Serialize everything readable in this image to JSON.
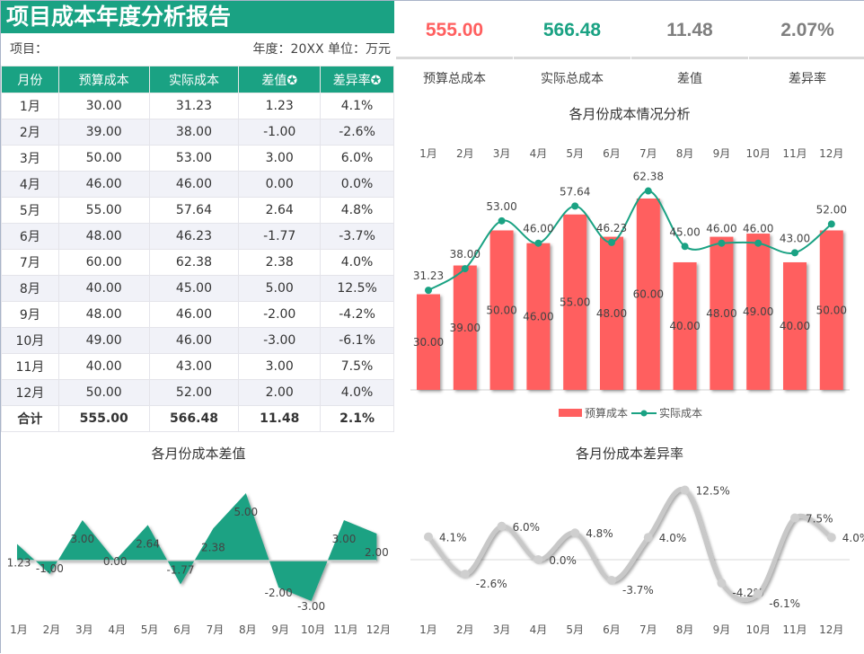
{
  "title": "项目成本年度分析报告",
  "meta": {
    "project_label": "项目：",
    "year_unit": "年度：20XX  单位：万元"
  },
  "table": {
    "headers": [
      "月份",
      "预算成本",
      "实际成本",
      "差值✪",
      "差异率✪"
    ],
    "rows": [
      [
        "1月",
        "30.00",
        "31.23",
        "1.23",
        "4.1%"
      ],
      [
        "2月",
        "39.00",
        "38.00",
        "-1.00",
        "-2.6%"
      ],
      [
        "3月",
        "50.00",
        "53.00",
        "3.00",
        "6.0%"
      ],
      [
        "4月",
        "46.00",
        "46.00",
        "0.00",
        "0.0%"
      ],
      [
        "5月",
        "55.00",
        "57.64",
        "2.64",
        "4.8%"
      ],
      [
        "6月",
        "48.00",
        "46.23",
        "-1.77",
        "-3.7%"
      ],
      [
        "7月",
        "60.00",
        "62.38",
        "2.38",
        "4.0%"
      ],
      [
        "8月",
        "40.00",
        "45.00",
        "5.00",
        "12.5%"
      ],
      [
        "9月",
        "48.00",
        "46.00",
        "-2.00",
        "-4.2%"
      ],
      [
        "10月",
        "49.00",
        "46.00",
        "-3.00",
        "-6.1%"
      ],
      [
        "11月",
        "40.00",
        "43.00",
        "3.00",
        "7.5%"
      ],
      [
        "12月",
        "50.00",
        "52.00",
        "2.00",
        "4.0%"
      ]
    ],
    "total": [
      "合计",
      "555.00",
      "566.48",
      "11.48",
      "2.1%"
    ]
  },
  "kpis": [
    {
      "value": "555.00",
      "label": "预算总成本",
      "color": "#ff5f5f"
    },
    {
      "value": "566.48",
      "label": "实际总成本",
      "color": "#1aa283"
    },
    {
      "value": "11.48",
      "label": "差值",
      "color": "#7f7f7f"
    },
    {
      "value": "2.07%",
      "label": "差异率",
      "color": "#7f7f7f"
    }
  ],
  "chart_data": [
    {
      "type": "bar",
      "title": "各月份成本情况分析",
      "categories": [
        "1月",
        "2月",
        "3月",
        "4月",
        "5月",
        "6月",
        "7月",
        "8月",
        "9月",
        "10月",
        "11月",
        "12月"
      ],
      "series": [
        {
          "name": "预算成本",
          "kind": "bar",
          "color": "#ff5f5f",
          "values": [
            30,
            39,
            50,
            46,
            55,
            48,
            60,
            40,
            48,
            49,
            40,
            50
          ]
        },
        {
          "name": "实际成本",
          "kind": "line",
          "color": "#1aa283",
          "values": [
            31.23,
            38,
            53,
            46,
            57.64,
            46.23,
            62.38,
            45,
            46,
            46,
            43,
            52
          ]
        }
      ],
      "legend": "bottom"
    },
    {
      "type": "area",
      "title": "各月份成本差值",
      "categories": [
        "1月",
        "2月",
        "3月",
        "4月",
        "5月",
        "6月",
        "7月",
        "8月",
        "9月",
        "10月",
        "11月",
        "12月"
      ],
      "values": [
        1.23,
        -1,
        3,
        0,
        2.64,
        -1.77,
        2.38,
        5,
        -2,
        -3,
        3,
        2
      ],
      "color": "#1aa283"
    },
    {
      "type": "line",
      "title": "各月份成本差异率",
      "categories": [
        "1月",
        "2月",
        "3月",
        "4月",
        "5月",
        "6月",
        "7月",
        "8月",
        "9月",
        "10月",
        "11月",
        "12月"
      ],
      "values": [
        4.1,
        -2.6,
        6.0,
        0.0,
        4.8,
        -3.7,
        4.0,
        12.5,
        -4.2,
        -6.1,
        7.5,
        4.0
      ],
      "color": "#c8c8c8"
    }
  ]
}
